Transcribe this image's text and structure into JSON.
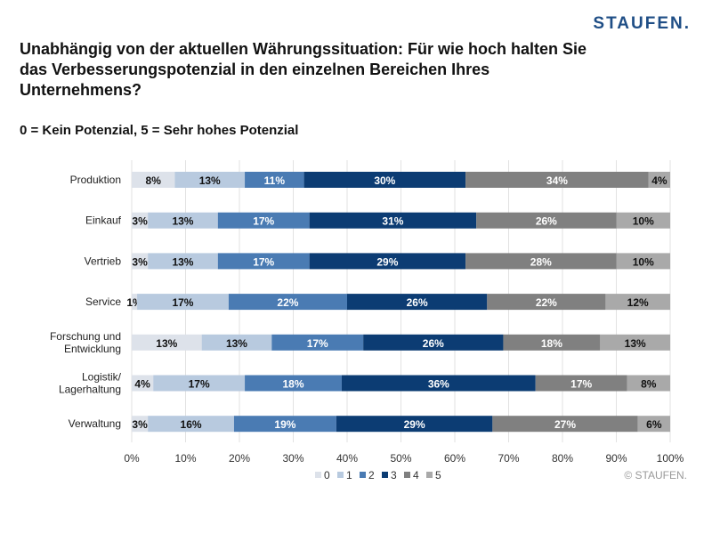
{
  "logo": "STAUFEN.",
  "copyright": "© STAUFEN.",
  "chart_data": {
    "type": "bar",
    "orientation": "horizontal",
    "stacked": true,
    "title": "Unabhängig von der aktuellen Währungssituation: Für wie hoch halten Sie das Verbesserungspotenzial in den einzelnen Bereichen Ihres Unternehmens?",
    "subtitle": "0 = Kein Potenzial, 5 = Sehr hohes Potenzial",
    "categories": [
      "Produktion",
      "Einkauf",
      "Vertrieb",
      "Service",
      "Forschung und Entwicklung",
      "Logistik/ Lagerhaltung",
      "Verwaltung"
    ],
    "series": [
      {
        "name": "0",
        "color": "#dde2ea",
        "values": [
          8,
          3,
          3,
          1,
          13,
          4,
          3
        ]
      },
      {
        "name": "1",
        "color": "#b8cadf",
        "values": [
          13,
          13,
          13,
          17,
          13,
          17,
          16
        ]
      },
      {
        "name": "2",
        "color": "#4a7bb3",
        "values": [
          11,
          17,
          17,
          22,
          17,
          18,
          19
        ]
      },
      {
        "name": "3",
        "color": "#0c3c73",
        "values": [
          30,
          31,
          29,
          26,
          26,
          36,
          29
        ]
      },
      {
        "name": "4",
        "color": "#808080",
        "values": [
          34,
          26,
          28,
          22,
          18,
          17,
          27
        ]
      },
      {
        "name": "5",
        "color": "#a9a9a9",
        "values": [
          4,
          10,
          10,
          12,
          13,
          8,
          6
        ]
      }
    ],
    "xticks": [
      "0%",
      "10%",
      "20%",
      "30%",
      "40%",
      "50%",
      "60%",
      "70%",
      "80%",
      "90%",
      "100%"
    ],
    "xlim": [
      0,
      100
    ],
    "grid": true,
    "legend": "bottom"
  }
}
